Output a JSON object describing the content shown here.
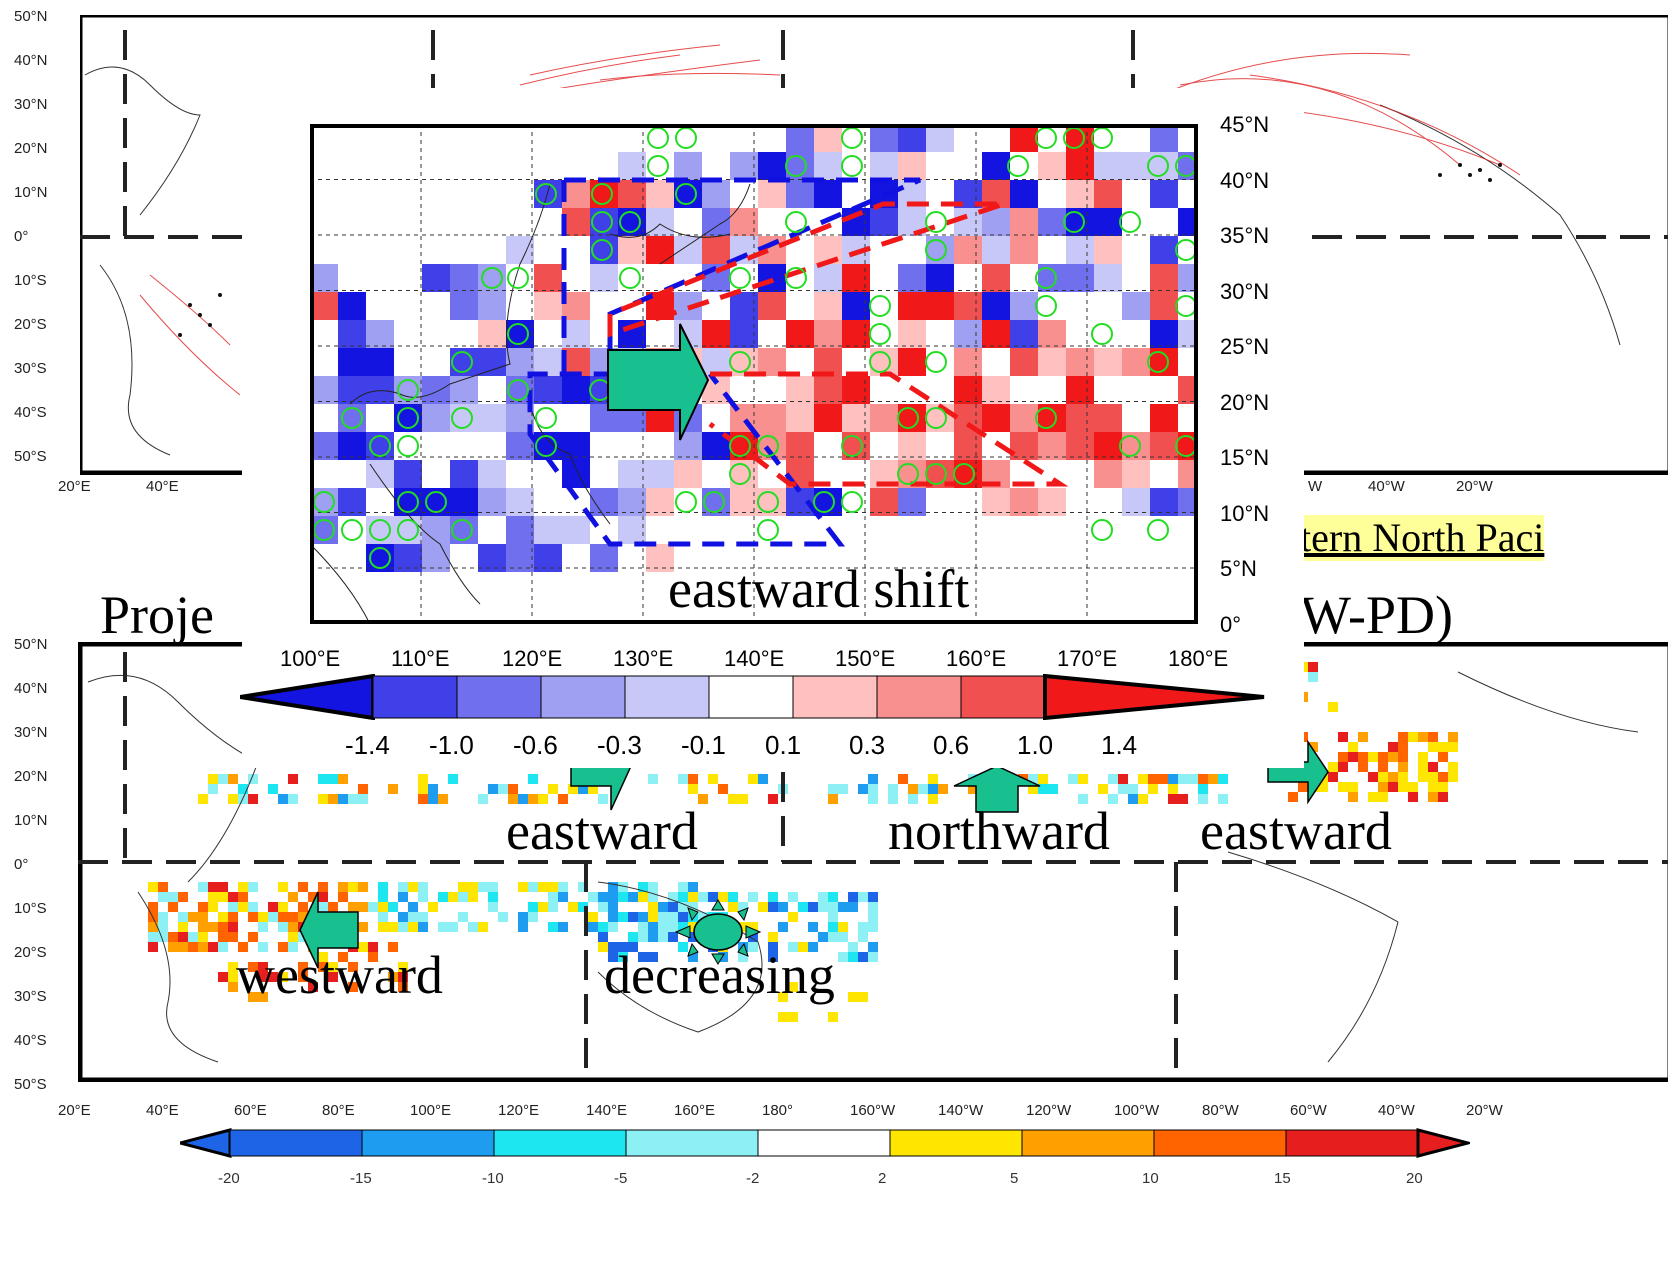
{
  "top_panel": {
    "lat_labels": [
      "50°N",
      "40°N",
      "30°N",
      "20°N",
      "10°N",
      "0°",
      "10°S",
      "20°S",
      "30°S",
      "40°S",
      "50°S"
    ],
    "lon_labels_visible": [
      "20°E",
      "40°E",
      "W",
      "40°W",
      "20°W"
    ]
  },
  "inset_map": {
    "lat_labels": [
      "45°N",
      "40°N",
      "35°N",
      "30°N",
      "25°N",
      "20°N",
      "15°N",
      "10°N",
      "5°N",
      "0°"
    ],
    "lon_labels": [
      "100°E",
      "110°E",
      "120°E",
      "130°E",
      "140°E",
      "150°E",
      "160°E",
      "170°E",
      "180°E"
    ],
    "annotation": "eastward shift",
    "colorbar": {
      "labels": [
        "-1.4",
        "-1.0",
        "-0.6",
        "-0.3",
        "-0.1",
        "0.1",
        "0.3",
        "0.6",
        "1.0",
        "1.4"
      ],
      "colors": [
        "#1414e0",
        "#4040e8",
        "#7070ee",
        "#a0a0f2",
        "#c8c8f8",
        "#ffffff",
        "#ffc0c0",
        "#f89090",
        "#f05050",
        "#f01818"
      ]
    }
  },
  "banner_link": "tern North Paci",
  "projection_title_left": "Proje",
  "projection_title_right": "W-PD)",
  "bottom_panel": {
    "lat_labels": [
      "50°N",
      "40°N",
      "30°N",
      "20°N",
      "10°N",
      "0°",
      "10°S",
      "20°S",
      "30°S",
      "40°S",
      "50°S"
    ],
    "lon_labels": [
      "20°E",
      "40°E",
      "60°E",
      "80°E",
      "100°E",
      "120°E",
      "140°E",
      "160°E",
      "180°",
      "160°W",
      "140°W",
      "120°W",
      "100°W",
      "80°W",
      "60°W",
      "40°W",
      "20°W"
    ],
    "annotations": [
      "eastward",
      "northward",
      "eastward",
      "westward",
      "decreasing"
    ],
    "colorbar": {
      "labels": [
        "-20",
        "-15",
        "-10",
        "-5",
        "-2",
        "2",
        "5",
        "10",
        "15",
        "20"
      ],
      "colors": [
        "#1e64e6",
        "#1e9cf0",
        "#1ee6f0",
        "#8cf0f5",
        "#ffffff",
        "#ffe600",
        "#ffa000",
        "#ff6400",
        "#e61e1e"
      ]
    }
  }
}
